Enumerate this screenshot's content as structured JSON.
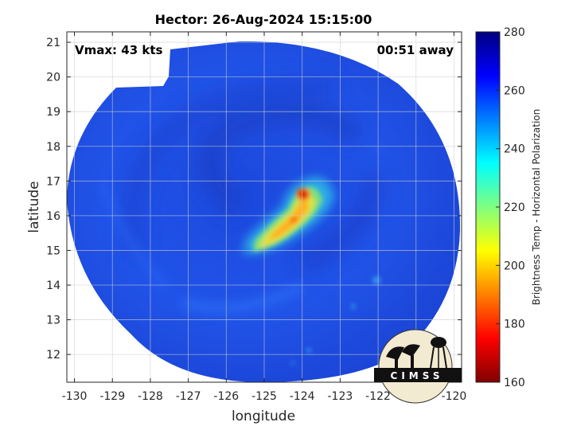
{
  "title": "Hector: 26-Aug-2024 15:15:00",
  "vmax_label": "Vmax: 43 kts",
  "time_away_label": "00:51 away",
  "logo_text": "CIMSS",
  "chart_data": {
    "type": "heatmap",
    "xlabel": "longitude",
    "ylabel": "latitude",
    "xlim": [
      -130.2,
      -119.8
    ],
    "ylim": [
      11.2,
      21.3
    ],
    "x_ticks": [
      -130,
      -129,
      -128,
      -127,
      -126,
      -125,
      -124,
      -123,
      -122,
      -121,
      -120
    ],
    "y_ticks": [
      12,
      13,
      14,
      15,
      16,
      17,
      18,
      19,
      20,
      21
    ],
    "grid": true,
    "storm_center": {
      "lon": -124.3,
      "lat": 16.1
    },
    "colorbar": {
      "label": "Brightness Temp - Horizontal Polarization",
      "min": 160,
      "max": 280,
      "ticks": [
        160,
        180,
        200,
        220,
        240,
        260,
        280
      ],
      "colormap": "jet"
    },
    "colors": {
      "background_field": "#1f4fe6",
      "outside_swath": "#ffffff",
      "warm_core": "#ff6a00",
      "hot_core": "#cc1a00"
    }
  }
}
